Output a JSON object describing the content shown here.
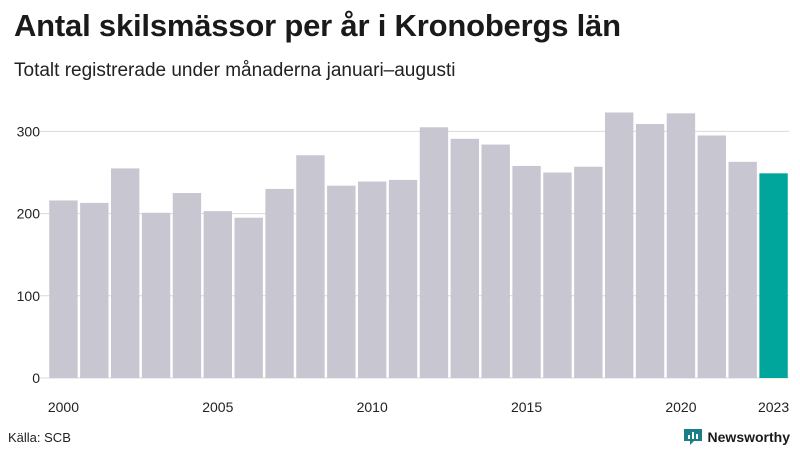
{
  "title": "Antal skilsmässor per år i Kronobergs län",
  "subtitle": "Totalt registrerade under månaderna januari–augusti",
  "source": "Källa: SCB",
  "brand": "Newsworthy",
  "colors": {
    "bar": "#c8c6d1",
    "highlight": "#00a69c",
    "grid": "#d9d9d9",
    "brand": "#1a7f86"
  },
  "chart_data": {
    "type": "bar",
    "title": "Antal skilsmässor per år i Kronobergs län",
    "subtitle": "Totalt registrerade under månaderna januari–augusti",
    "xlabel": "",
    "ylabel": "",
    "categories": [
      "2000",
      "2001",
      "2002",
      "2003",
      "2004",
      "2005",
      "2006",
      "2007",
      "2008",
      "2009",
      "2010",
      "2011",
      "2012",
      "2013",
      "2014",
      "2015",
      "2016",
      "2017",
      "2018",
      "2019",
      "2020",
      "2021",
      "2022",
      "2023"
    ],
    "values": [
      216,
      213,
      255,
      201,
      225,
      203,
      195,
      230,
      271,
      234,
      239,
      241,
      305,
      291,
      284,
      258,
      250,
      257,
      323,
      309,
      322,
      295,
      263,
      249
    ],
    "highlight": "2023",
    "ylim": [
      0,
      330
    ],
    "yticks": [
      0,
      100,
      200,
      300
    ],
    "xticks": [
      "2000",
      "2005",
      "2010",
      "2015",
      "2020",
      "2023"
    ],
    "grid": true
  }
}
